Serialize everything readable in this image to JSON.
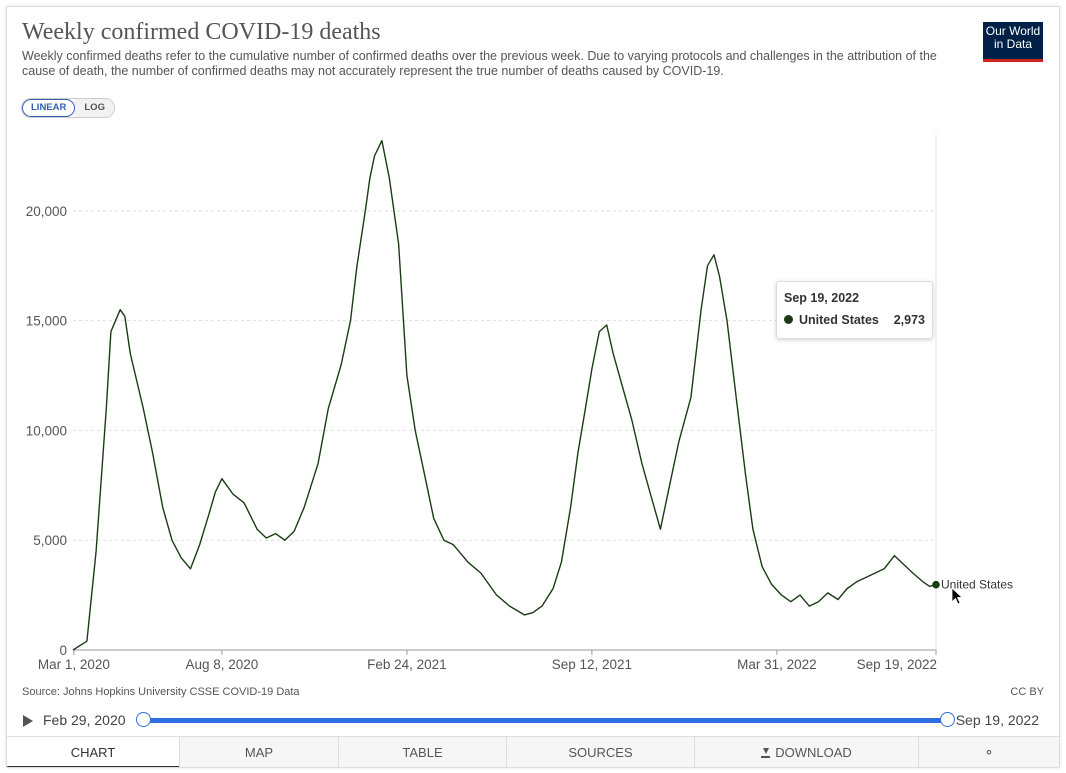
{
  "header": {
    "title": "Weekly confirmed COVID-19 deaths",
    "subtitle": "Weekly confirmed deaths refer to the cumulative number of confirmed deaths over the previous week. Due to varying protocols and challenges in the attribution of the cause of death, the number of confirmed deaths may not accurately represent the true number of deaths caused by COVID-19.",
    "logo_line1": "Our World",
    "logo_line2": "in Data"
  },
  "scale_toggle": {
    "linear_label": "LINEAR",
    "log_label": "LOG",
    "selected": "LINEAR"
  },
  "tooltip": {
    "date": "Sep 19, 2022",
    "series": "United States",
    "value": "2,973"
  },
  "footer": {
    "source": "Source: Johns Hopkins University CSSE COVID-19 Data",
    "license": "CC BY"
  },
  "timeline": {
    "start_label": "Feb 29, 2020",
    "end_label": "Sep 19, 2022",
    "start_fraction": 0,
    "end_fraction": 1
  },
  "tabs": [
    {
      "label": "CHART",
      "active": true
    },
    {
      "label": "MAP",
      "active": false
    },
    {
      "label": "TABLE",
      "active": false
    },
    {
      "label": "SOURCES",
      "active": false
    },
    {
      "label": "DOWNLOAD",
      "active": false
    }
  ],
  "icons": {
    "play": "play-icon",
    "download": "download-icon",
    "share": "share-icon"
  },
  "colors": {
    "series": "#1a3c14",
    "accent": "#2d6fe0",
    "logo_bg": "#002147",
    "logo_bar": "#ce261e"
  },
  "chart_data": {
    "type": "line",
    "title": "Weekly confirmed COVID-19 deaths",
    "xlabel": "",
    "ylabel": "",
    "x_ticks": [
      "Mar 1, 2020",
      "Aug 8, 2020",
      "Feb 24, 2021",
      "Sep 12, 2021",
      "Mar 31, 2022",
      "Sep 19, 2022"
    ],
    "y_ticks": [
      0,
      5000,
      10000,
      15000,
      20000
    ],
    "y_tick_labels": [
      "0",
      "5,000",
      "10,000",
      "15,000",
      "20,000"
    ],
    "ylim": [
      0,
      23500
    ],
    "xlim": [
      "2020-02-29",
      "2022-09-19"
    ],
    "grid": "horizontal dashed",
    "series": [
      {
        "name": "United States",
        "end_label": "United States",
        "x": [
          "2020-02-29",
          "2020-03-15",
          "2020-03-25",
          "2020-04-05",
          "2020-04-10",
          "2020-04-20",
          "2020-04-25",
          "2020-05-01",
          "2020-05-15",
          "2020-05-25",
          "2020-06-05",
          "2020-06-15",
          "2020-06-25",
          "2020-07-05",
          "2020-07-15",
          "2020-07-25",
          "2020-08-01",
          "2020-08-08",
          "2020-08-20",
          "2020-09-01",
          "2020-09-15",
          "2020-09-25",
          "2020-10-05",
          "2020-10-15",
          "2020-10-25",
          "2020-11-05",
          "2020-11-20",
          "2020-12-01",
          "2020-12-15",
          "2020-12-25",
          "2021-01-01",
          "2021-01-10",
          "2021-01-15",
          "2021-01-20",
          "2021-01-28",
          "2021-02-05",
          "2021-02-15",
          "2021-02-24",
          "2021-03-05",
          "2021-03-15",
          "2021-03-25",
          "2021-04-05",
          "2021-04-15",
          "2021-05-01",
          "2021-05-15",
          "2021-06-01",
          "2021-06-15",
          "2021-07-01",
          "2021-07-10",
          "2021-07-20",
          "2021-08-01",
          "2021-08-10",
          "2021-08-20",
          "2021-08-28",
          "2021-09-05",
          "2021-09-12",
          "2021-09-20",
          "2021-09-28",
          "2021-10-05",
          "2021-10-15",
          "2021-10-25",
          "2021-11-05",
          "2021-11-15",
          "2021-11-25",
          "2021-12-05",
          "2021-12-15",
          "2021-12-28",
          "2022-01-08",
          "2022-01-15",
          "2022-01-22",
          "2022-01-28",
          "2022-02-05",
          "2022-02-15",
          "2022-02-25",
          "2022-03-05",
          "2022-03-15",
          "2022-03-25",
          "2022-04-05",
          "2022-04-15",
          "2022-04-25",
          "2022-05-05",
          "2022-05-15",
          "2022-05-25",
          "2022-06-05",
          "2022-06-15",
          "2022-06-25",
          "2022-07-05",
          "2022-07-15",
          "2022-07-25",
          "2022-08-05",
          "2022-08-15",
          "2022-08-25",
          "2022-09-05",
          "2022-09-12",
          "2022-09-19"
        ],
        "values": [
          0,
          400,
          4500,
          11000,
          14500,
          15500,
          15200,
          13500,
          11000,
          9000,
          6500,
          5000,
          4200,
          3700,
          4800,
          6200,
          7200,
          7800,
          7100,
          6700,
          5500,
          5100,
          5300,
          5000,
          5400,
          6500,
          8500,
          11000,
          13000,
          15000,
          17500,
          20000,
          21500,
          22500,
          23200,
          21500,
          18500,
          12500,
          10000,
          8000,
          6000,
          5000,
          4800,
          4000,
          3500,
          2500,
          2000,
          1600,
          1700,
          2000,
          2800,
          4000,
          6500,
          9000,
          11000,
          12800,
          14500,
          14800,
          13500,
          12000,
          10500,
          8500,
          7000,
          5500,
          7500,
          9500,
          11500,
          15500,
          17500,
          18000,
          17000,
          15000,
          11500,
          8000,
          5500,
          3800,
          3000,
          2500,
          2200,
          2500,
          2000,
          2200,
          2600,
          2300,
          2800,
          3100,
          3300,
          3500,
          3700,
          4300,
          3900,
          3500,
          3100,
          2900,
          2973
        ]
      }
    ]
  }
}
